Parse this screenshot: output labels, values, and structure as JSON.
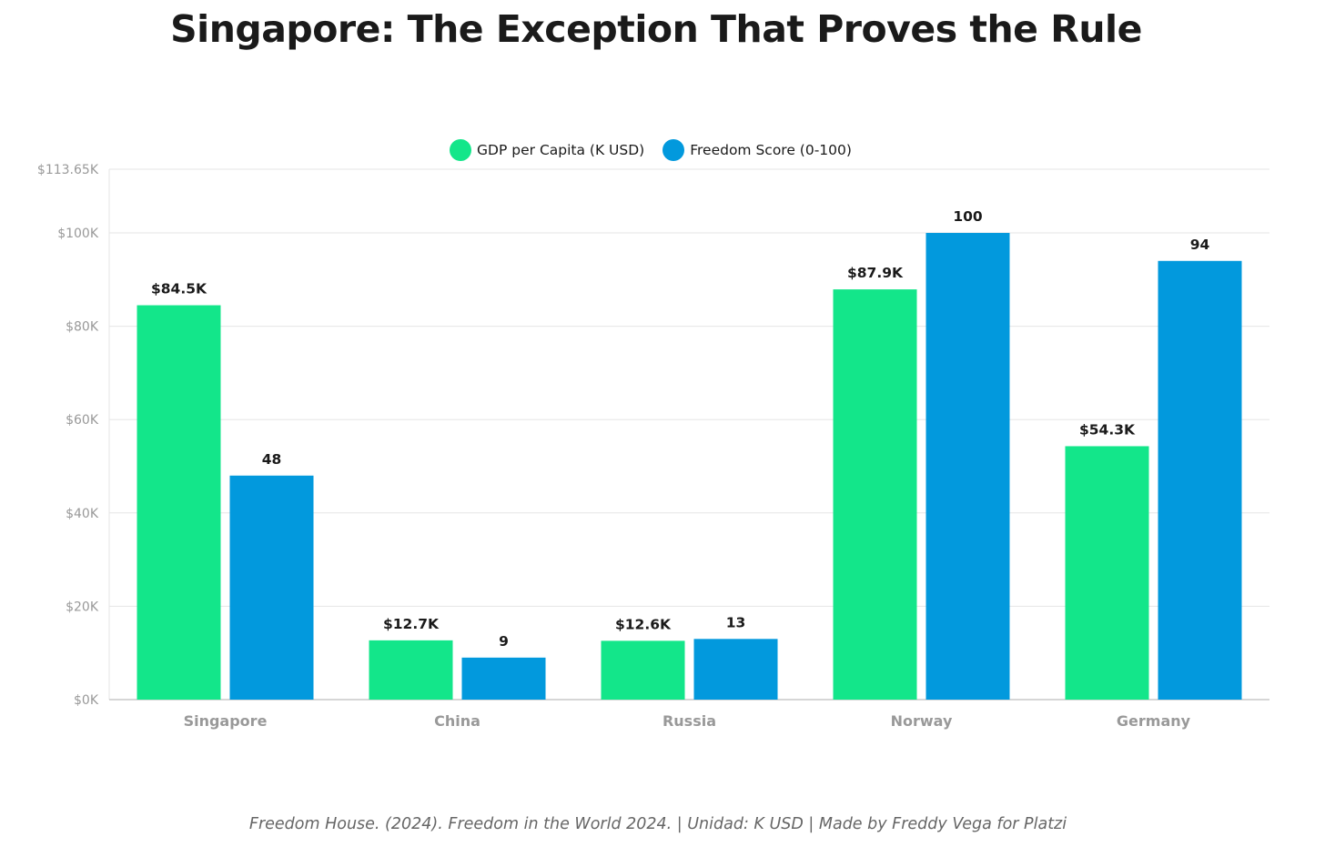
{
  "title": "Singapore: The Exception That Proves the Rule",
  "source": "Freedom House. (2024). Freedom in the World 2024. | Unidad: K USD | Made by Freddy Vega for Platzi",
  "colors": {
    "gdp": "#13e68a",
    "freedom": "#0299dd",
    "grid": "#e5e5e5",
    "axis": "#c8c8c8",
    "tick": "#999999",
    "label": "#1a1a1a"
  },
  "chart_data": {
    "type": "bar",
    "title": "Singapore: The Exception That Proves the Rule",
    "categories": [
      "Singapore",
      "China",
      "Russia",
      "Norway",
      "Germany"
    ],
    "series": [
      {
        "name": "GDP per Capita (K USD)",
        "values": [
          84.5,
          12.7,
          12.6,
          87.9,
          54.3
        ],
        "labels": [
          "$84.5K",
          "$12.7K",
          "$12.6K",
          "$87.9K",
          "$54.3K"
        ]
      },
      {
        "name": "Freedom Score (0-100)",
        "values": [
          48,
          9,
          13,
          100,
          94
        ],
        "labels": [
          "48",
          "9",
          "13",
          "100",
          "94"
        ]
      }
    ],
    "ylim": [
      0,
      113.65
    ],
    "yticks": [
      0,
      20,
      40,
      60,
      80,
      100,
      113.65
    ],
    "ytick_labels": [
      "$0K",
      "$20K",
      "$40K",
      "$60K",
      "$80K",
      "$100K",
      "$113.65K"
    ],
    "legend_position": "top-center",
    "grid": true
  }
}
